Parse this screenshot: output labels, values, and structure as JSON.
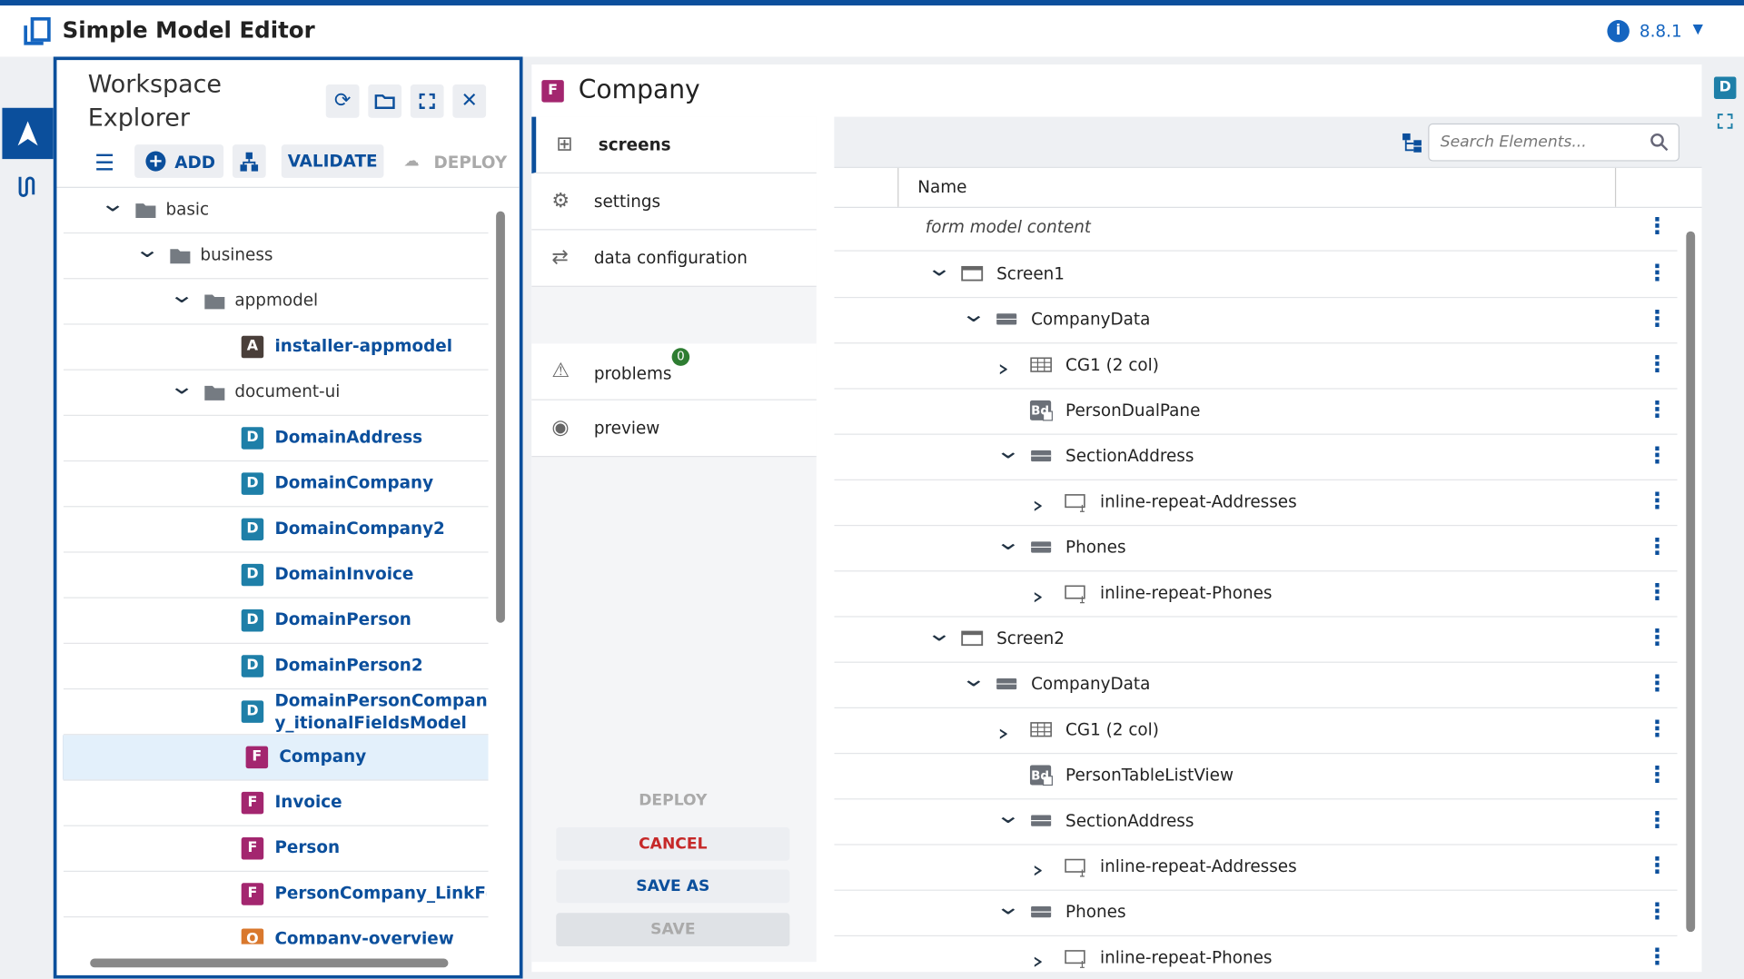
{
  "header": {
    "title": "Simple Model Editor",
    "version": "8.8.1"
  },
  "workspace": {
    "title": "Workspace Explorer",
    "toolbar": {
      "add": "ADD",
      "validate": "VALIDATE",
      "deploy": "DEPLOY"
    },
    "tree": [
      {
        "label": "basic",
        "level": 0,
        "toggle": "open"
      },
      {
        "label": "business",
        "level": 1,
        "toggle": "open"
      },
      {
        "label": "appmodel",
        "level": 2,
        "toggle": "open"
      },
      {
        "label": "installer-appmodel",
        "level": 3,
        "badge": "A"
      },
      {
        "label": "document-ui",
        "level": 2,
        "toggle": "open"
      },
      {
        "label": "DomainAddress",
        "level": 3,
        "badge": "D"
      },
      {
        "label": "DomainCompany",
        "level": 3,
        "badge": "D"
      },
      {
        "label": "DomainCompany2",
        "level": 3,
        "badge": "D"
      },
      {
        "label": "DomainInvoice",
        "level": 3,
        "badge": "D"
      },
      {
        "label": "DomainPerson",
        "level": 3,
        "badge": "D"
      },
      {
        "label": "DomainPerson2",
        "level": 3,
        "badge": "D"
      },
      {
        "label": "DomainPersonCompany_itionalFieldsModel",
        "level": 3,
        "badge": "D"
      },
      {
        "label": "Company",
        "level": 3,
        "badge": "F",
        "selected": true
      },
      {
        "label": "Invoice",
        "level": 3,
        "badge": "F"
      },
      {
        "label": "Person",
        "level": 3,
        "badge": "F"
      },
      {
        "label": "PersonCompany_LinkFor",
        "level": 3,
        "badge": "F"
      },
      {
        "label": "Company-overview",
        "level": 3,
        "badge": "O"
      }
    ]
  },
  "editor": {
    "badge": "F",
    "title": "Company",
    "tabs": [
      {
        "label": "screens",
        "active": true
      },
      {
        "label": "settings"
      },
      {
        "label": "data configuration"
      },
      {
        "label": "problems",
        "count": "0"
      },
      {
        "label": "preview"
      }
    ],
    "buttons": {
      "deploy": "DEPLOY",
      "cancel": "CANCEL",
      "save_as": "SAVE AS",
      "save": "SAVE"
    },
    "search_placeholder": "Search Elements...",
    "column": "Name",
    "rows": [
      {
        "label": "form model content",
        "level": 0,
        "italic": true
      },
      {
        "label": "Screen1",
        "level": 0,
        "toggle": "open",
        "icon": "screen"
      },
      {
        "label": "CompanyData",
        "level": 1,
        "toggle": "open",
        "icon": "section"
      },
      {
        "label": "CG1 (2 col)",
        "level": 2,
        "toggle": "closed",
        "icon": "grid"
      },
      {
        "label": "PersonDualPane",
        "level": 2,
        "icon": "bd",
        "icon_text": "Bd"
      },
      {
        "label": "SectionAddress",
        "level": 2,
        "toggle": "open",
        "icon": "section"
      },
      {
        "label": "inline-repeat-Addresses",
        "level": 3,
        "toggle": "closed",
        "icon": "repeat"
      },
      {
        "label": "Phones",
        "level": 2,
        "toggle": "open",
        "icon": "section"
      },
      {
        "label": "inline-repeat-Phones",
        "level": 3,
        "toggle": "closed",
        "icon": "repeat"
      },
      {
        "label": "Screen2",
        "level": 0,
        "toggle": "open",
        "icon": "screen"
      },
      {
        "label": "CompanyData",
        "level": 1,
        "toggle": "open",
        "icon": "section"
      },
      {
        "label": "CG1 (2 col)",
        "level": 2,
        "toggle": "closed",
        "icon": "grid"
      },
      {
        "label": "PersonTableListView",
        "level": 2,
        "icon": "bd",
        "icon_text": "Bd"
      },
      {
        "label": "SectionAddress",
        "level": 2,
        "toggle": "open",
        "icon": "section"
      },
      {
        "label": "inline-repeat-Addresses",
        "level": 3,
        "toggle": "closed",
        "icon": "repeat"
      },
      {
        "label": "Phones",
        "level": 2,
        "toggle": "open",
        "icon": "section"
      },
      {
        "label": "inline-repeat-Phones",
        "level": 3,
        "toggle": "closed",
        "icon": "repeat"
      }
    ]
  },
  "side_badge": "D"
}
